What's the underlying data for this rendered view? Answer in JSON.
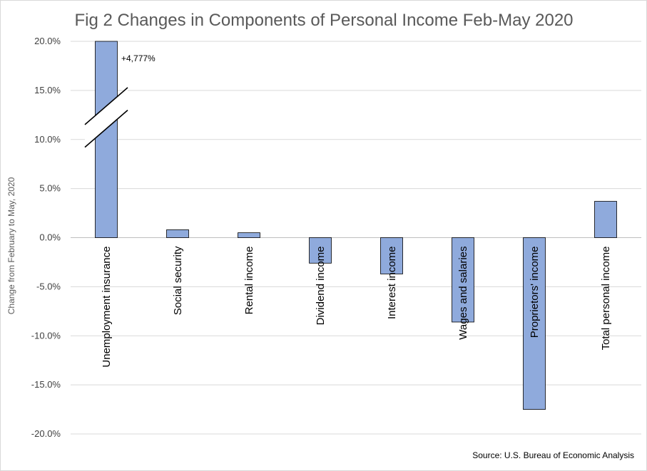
{
  "chart_data": {
    "type": "bar",
    "title": "Fig 2 Changes in Components of Personal Income Feb-May 2020",
    "ylabel": "Change from February  to May, 2020",
    "xlabel": "",
    "ylim": [
      -20,
      20
    ],
    "y_ticks": [
      20,
      15,
      10,
      5,
      0,
      -5,
      -10,
      -15,
      -20
    ],
    "y_tick_labels": [
      "20.0%",
      "15.0%",
      "10.0%",
      "5.0%",
      "0.0%",
      "-5.0%",
      "-10.0%",
      "-15.0%",
      "-20.0%"
    ],
    "categories": [
      "Unemployment insurance",
      "Social security",
      "Rental income",
      "Dividend income",
      "Interest income",
      "Wages and salaries",
      "Proprietors' income",
      "Total personal income"
    ],
    "values": [
      4777,
      0.8,
      0.5,
      -2.6,
      -3.7,
      -8.6,
      -17.5,
      3.7
    ],
    "bar_color": "#8faadc",
    "grid": true,
    "axis_break": "Unemployment insurance",
    "annotation": "+4,777%",
    "source": "Source: U.S. Bureau of Economic Analysis"
  }
}
